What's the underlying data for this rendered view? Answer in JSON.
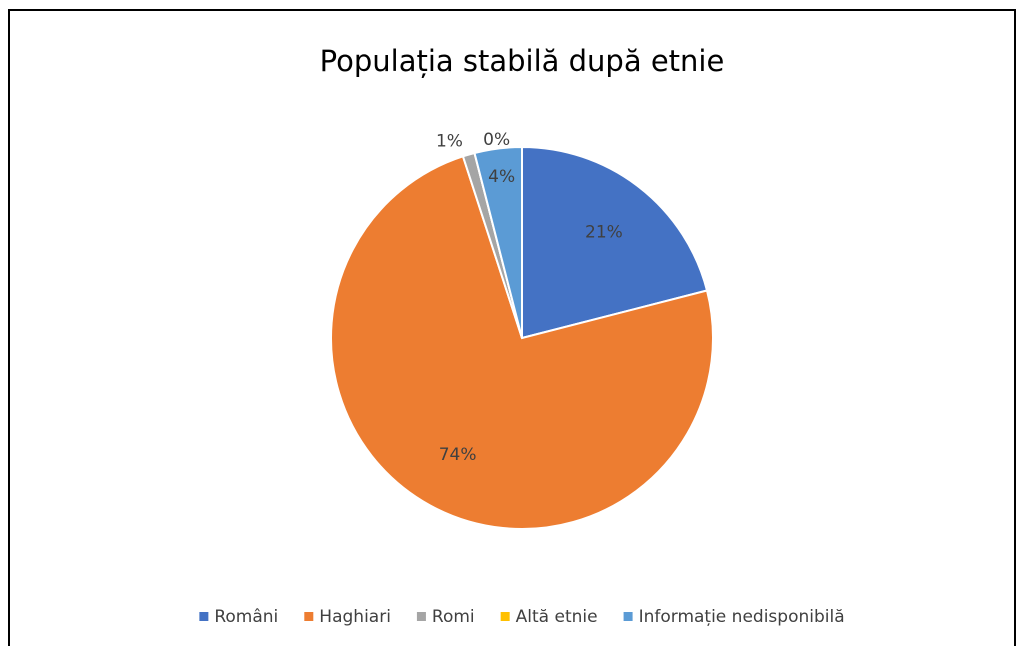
{
  "chart_data": {
    "type": "pie",
    "title": "Populația stabilă după etnie",
    "categories": [
      "Români",
      "Haghiari",
      "Romi",
      "Altă etnie",
      "Informație nedisponibilă"
    ],
    "values": [
      21,
      74,
      1,
      0,
      4
    ],
    "value_labels": [
      "21%",
      "74%",
      "1%",
      "0%",
      "4%"
    ],
    "colors": [
      "#4472c4",
      "#ed7d31",
      "#a5a5a5",
      "#ffc000",
      "#5b9bd5"
    ],
    "legend": "bottom"
  }
}
